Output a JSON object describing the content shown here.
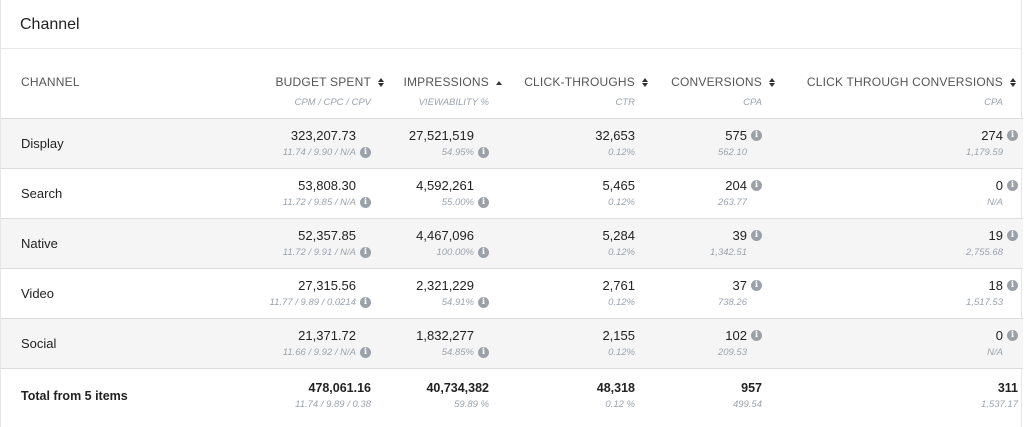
{
  "panel": {
    "title": "Channel"
  },
  "columns": {
    "channel": {
      "label": "CHANNEL"
    },
    "budget": {
      "label": "BUDGET SPENT",
      "sub": "CPM / CPC / CPV"
    },
    "impressions": {
      "label": "IMPRESSIONS",
      "sub": "VIEWABILITY %"
    },
    "clicks": {
      "label": "CLICK-THROUGHS",
      "sub": "CTR"
    },
    "conversions": {
      "label": "CONVERSIONS",
      "sub": "CPA"
    },
    "ctconv": {
      "label": "CLICK THROUGH CONVERSIONS",
      "sub": "CPA"
    }
  },
  "rows": [
    {
      "name": "Display",
      "budget": "323,207.73",
      "budget_sub": "11.74 / 9.90 / N/A",
      "impressions": "27,521,519",
      "impressions_sub": "54.95%",
      "clicks": "32,653",
      "clicks_sub": "0.12%",
      "conversions": "575",
      "conversions_sub": "562.10",
      "ctconv": "274",
      "ctconv_sub": "1,179.59"
    },
    {
      "name": "Search",
      "budget": "53,808.30",
      "budget_sub": "11.72 / 9.85 / N/A",
      "impressions": "4,592,261",
      "impressions_sub": "55.00%",
      "clicks": "5,465",
      "clicks_sub": "0.12%",
      "conversions": "204",
      "conversions_sub": "263.77",
      "ctconv": "0",
      "ctconv_sub": "N/A"
    },
    {
      "name": "Native",
      "budget": "52,357.85",
      "budget_sub": "11.72 / 9.91 / N/A",
      "impressions": "4,467,096",
      "impressions_sub": "100.00%",
      "clicks": "5,284",
      "clicks_sub": "0.12%",
      "conversions": "39",
      "conversions_sub": "1,342.51",
      "ctconv": "19",
      "ctconv_sub": "2,755.68"
    },
    {
      "name": "Video",
      "budget": "27,315.56",
      "budget_sub": "11.77 / 9.89 / 0.0214",
      "impressions": "2,321,229",
      "impressions_sub": "54.91%",
      "clicks": "2,761",
      "clicks_sub": "0.12%",
      "conversions": "37",
      "conversions_sub": "738.26",
      "ctconv": "18",
      "ctconv_sub": "1,517.53"
    },
    {
      "name": "Social",
      "budget": "21,371.72",
      "budget_sub": "11.66 / 9.92 / N/A",
      "impressions": "1,832,277",
      "impressions_sub": "54.85%",
      "clicks": "2,155",
      "clicks_sub": "0.12%",
      "conversions": "102",
      "conversions_sub": "209.53",
      "ctconv": "0",
      "ctconv_sub": "N/A"
    }
  ],
  "total": {
    "name": "Total from 5 items",
    "budget": "478,061.16",
    "budget_sub": "11.74 / 9.89 / 0.38",
    "impressions": "40,734,382",
    "impressions_sub": "59.89 %",
    "clicks": "48,318",
    "clicks_sub": "0.12 %",
    "conversions": "957",
    "conversions_sub": "499.54",
    "ctconv": "311",
    "ctconv_sub": "1,537.17"
  },
  "icons": {
    "info": "info-circle-icon",
    "sort": "sort-icon",
    "sort_asc": "sort-ascending-icon"
  }
}
